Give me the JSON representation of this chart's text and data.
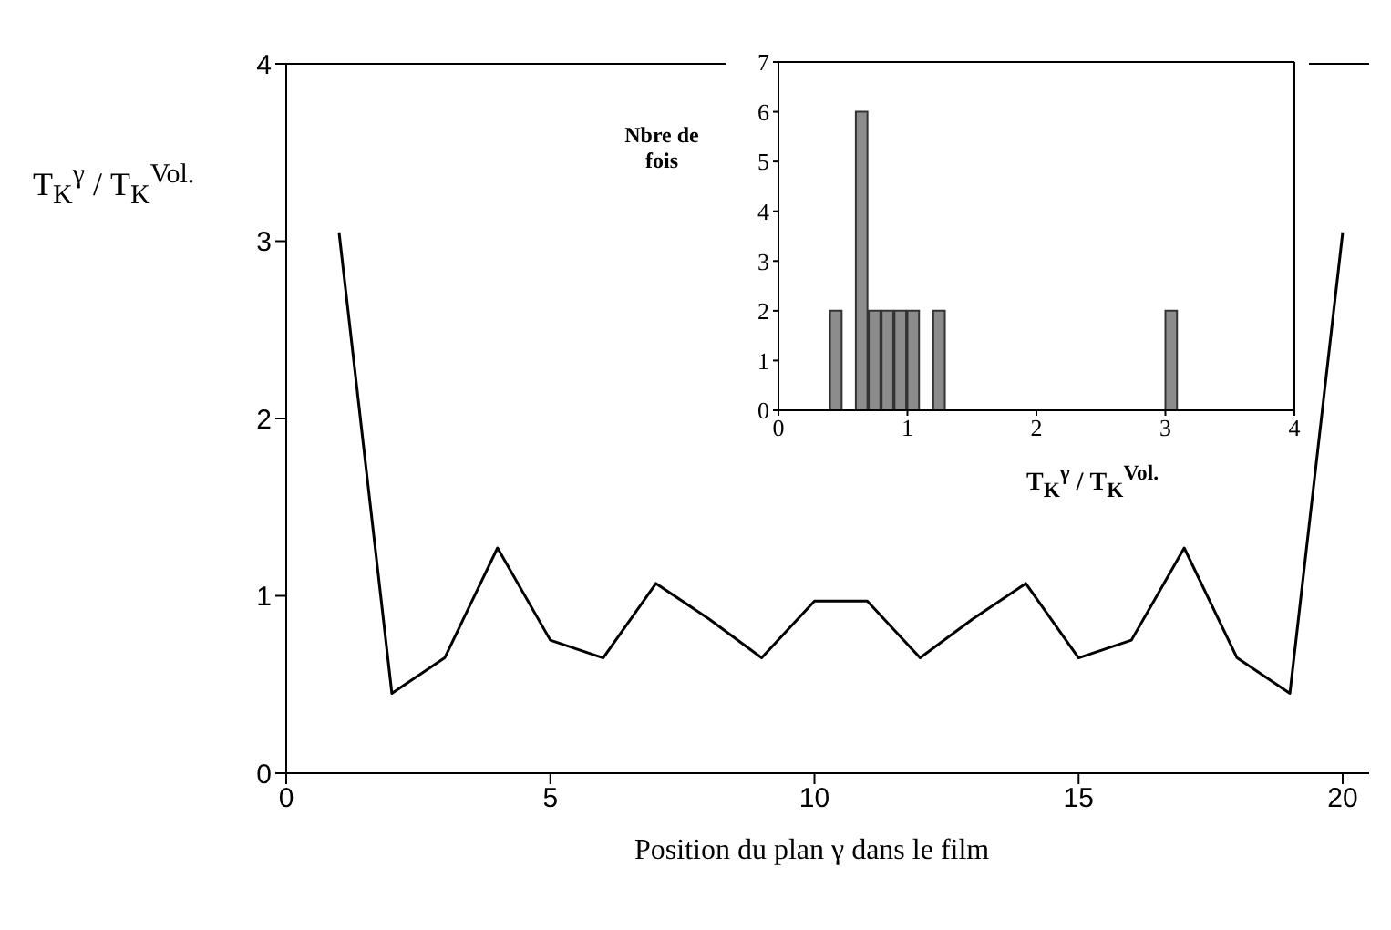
{
  "chart_data": [
    {
      "type": "line",
      "xlabel": "Position du plan γ dans le film",
      "ylabel": "T$_{K}$$^{γ}$ / T$_{K}$$^{Vol.}$",
      "x": [
        1,
        2,
        3,
        4,
        5,
        6,
        7,
        8,
        9,
        10,
        11,
        12,
        13,
        14,
        15,
        16,
        17,
        18,
        19,
        20
      ],
      "values": [
        3.05,
        0.45,
        0.65,
        1.27,
        0.75,
        0.65,
        1.07,
        0.87,
        0.65,
        0.97,
        0.97,
        0.65,
        0.87,
        1.07,
        0.65,
        0.75,
        1.27,
        0.65,
        0.45,
        3.05
      ],
      "color": "#000000",
      "xlim": [
        0,
        20.5
      ],
      "xticks": [
        0,
        5,
        10,
        15,
        20
      ],
      "ylim": [
        0,
        4
      ],
      "yticks": [
        0,
        1,
        2,
        3,
        4
      ]
    },
    {
      "type": "histogram",
      "xlabel": "T$_{K}$$^{γ}$ / T$_{K}$$^{Vol.}$",
      "ylabel": "Nbre de fois",
      "bins": [
        0.4,
        0.5,
        0.6,
        0.7,
        0.8,
        0.9,
        1.0,
        1.1,
        1.2,
        1.3,
        1.4,
        1.5,
        1.6,
        1.7,
        1.8,
        1.9,
        2.0,
        2.1,
        2.2,
        2.3,
        2.4,
        2.5,
        2.6,
        2.7,
        2.8,
        2.9,
        3.0,
        3.1
      ],
      "values": [
        2,
        0,
        6,
        2,
        2,
        2,
        2,
        0,
        2,
        0,
        0,
        0,
        0,
        0,
        0,
        0,
        0,
        0,
        0,
        0,
        0,
        0,
        0,
        0,
        0,
        0,
        2
      ],
      "color": "#8c8c8c",
      "xlim": [
        0,
        4
      ],
      "xticks": [
        0,
        1,
        2,
        3,
        4
      ],
      "ylim": [
        0,
        7
      ],
      "yticks": [
        0,
        1,
        2,
        3,
        4,
        5,
        6,
        7
      ]
    }
  ]
}
